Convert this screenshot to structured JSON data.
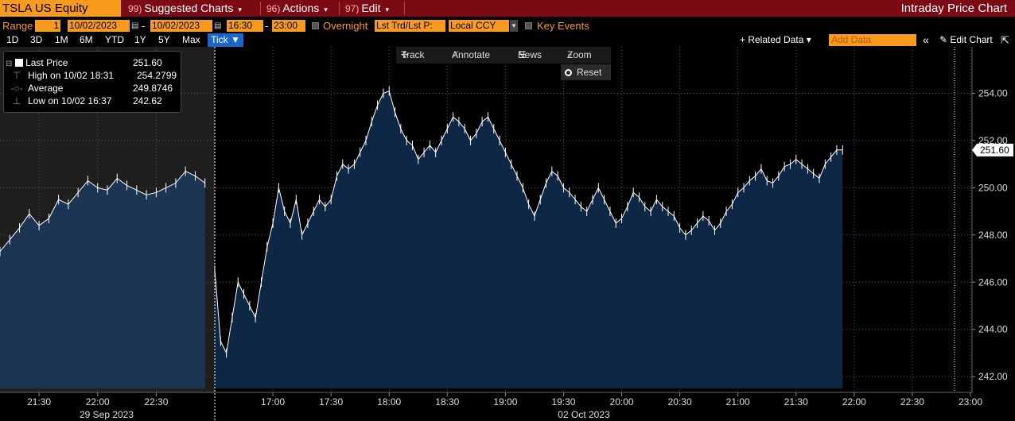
{
  "topbar": {
    "ticker": "TSLA US Equity",
    "suggested": {
      "num": "99)",
      "label": "Suggested Charts"
    },
    "actions": {
      "num": "96)",
      "label": "Actions"
    },
    "edit": {
      "num": "97)",
      "label": "Edit"
    },
    "title": "Intraday Price Chart",
    "dropdown_glyph": "▾"
  },
  "bar2": {
    "range_label": "Range",
    "range_value": "1",
    "start_date": "10/02/2023",
    "dash": "-",
    "end_date": "10/02/2023",
    "start_time": "16:30",
    "end_time": "23:00",
    "overnight_label": "Overnight",
    "field_select": "Lst Trd/Lst P:",
    "ccy_select": "Local CCY",
    "key_events_label": "Key Events"
  },
  "bar3": {
    "periods": [
      "1D",
      "3D",
      "1M",
      "6M",
      "YTD",
      "1Y",
      "5Y",
      "Max"
    ],
    "tick_label": "Tick ▼",
    "related_data": "+ Related Data ▾",
    "add_data_placeholder": "Add Data",
    "collapse_glyph": "«",
    "edit_chart": "Edit Chart",
    "expand_glyph": "⇱"
  },
  "legend": {
    "last_price_label": "Last Price",
    "last_price_value": "251.60",
    "high_label": "High on 10/02 18:31",
    "high_value": "254.2799",
    "average_label": "Average",
    "average_value": "249.8746",
    "low_label": "Low on 10/02 16:37",
    "low_value": "242.62"
  },
  "tools": {
    "track": "Track",
    "annotate": "Annotate",
    "news": "News",
    "zoom": "Zoom",
    "reset": "Reset"
  },
  "chart_data": {
    "type": "area",
    "ylim": [
      241.5,
      255.8
    ],
    "y_ticks": [
      "242.00",
      "244.00",
      "246.00",
      "248.00",
      "250.00",
      "252.00",
      "254.00"
    ],
    "last_price_tag": "251.60",
    "x_ticks": [
      "21:30",
      "22:00",
      "22:30",
      "17:00",
      "17:30",
      "18:00",
      "18:30",
      "19:00",
      "19:30",
      "20:00",
      "20:30",
      "21:00",
      "21:30",
      "22:00",
      "22:30",
      "23:00"
    ],
    "date_labels": [
      "29 Sep 2023",
      "02 Oct 2023"
    ],
    "sessions": [
      {
        "date": "29 Sep 2023",
        "x_start": "21:10",
        "x_end": "23:00",
        "points": [
          [
            0,
            247.3
          ],
          [
            5,
            247.8
          ],
          [
            10,
            248.3
          ],
          [
            15,
            248.9
          ],
          [
            20,
            248.4
          ],
          [
            25,
            248.7
          ],
          [
            30,
            249.5
          ],
          [
            35,
            249.3
          ],
          [
            40,
            249.8
          ],
          [
            45,
            250.3
          ],
          [
            50,
            250.0
          ],
          [
            55,
            249.9
          ],
          [
            60,
            250.4
          ],
          [
            65,
            250.1
          ],
          [
            70,
            249.9
          ],
          [
            75,
            249.7
          ],
          [
            80,
            249.8
          ],
          [
            85,
            250.0
          ],
          [
            90,
            250.2
          ],
          [
            95,
            250.7
          ],
          [
            100,
            250.5
          ],
          [
            105,
            250.2
          ]
        ]
      },
      {
        "date": "02 Oct 2023",
        "x_start": "16:30",
        "x_end": "23:00",
        "points": [
          [
            0,
            246.5
          ],
          [
            3,
            243.5
          ],
          [
            6,
            243.0
          ],
          [
            9,
            244.5
          ],
          [
            12,
            246.0
          ],
          [
            15,
            245.5
          ],
          [
            18,
            245.0
          ],
          [
            21,
            244.5
          ],
          [
            24,
            246.0
          ],
          [
            27,
            247.5
          ],
          [
            30,
            248.5
          ],
          [
            33,
            250.0
          ],
          [
            36,
            249.0
          ],
          [
            39,
            248.5
          ],
          [
            42,
            249.5
          ],
          [
            45,
            248.0
          ],
          [
            48,
            248.5
          ],
          [
            51,
            249.0
          ],
          [
            54,
            249.5
          ],
          [
            57,
            249.2
          ],
          [
            60,
            249.5
          ],
          [
            63,
            250.5
          ],
          [
            66,
            251.0
          ],
          [
            69,
            250.8
          ],
          [
            72,
            251.0
          ],
          [
            75,
            251.5
          ],
          [
            78,
            252.0
          ],
          [
            81,
            252.8
          ],
          [
            84,
            253.5
          ],
          [
            87,
            254.0
          ],
          [
            90,
            254.1
          ],
          [
            93,
            253.2
          ],
          [
            96,
            252.5
          ],
          [
            99,
            252.0
          ],
          [
            102,
            251.8
          ],
          [
            105,
            251.2
          ],
          [
            108,
            251.5
          ],
          [
            111,
            251.8
          ],
          [
            114,
            251.5
          ],
          [
            117,
            252.0
          ],
          [
            120,
            252.5
          ],
          [
            123,
            253.0
          ],
          [
            126,
            252.8
          ],
          [
            129,
            252.5
          ],
          [
            132,
            252.0
          ],
          [
            135,
            252.3
          ],
          [
            138,
            252.8
          ],
          [
            141,
            253.0
          ],
          [
            144,
            252.5
          ],
          [
            147,
            252.0
          ],
          [
            150,
            251.5
          ],
          [
            153,
            251.0
          ],
          [
            156,
            250.5
          ],
          [
            159,
            250.0
          ],
          [
            162,
            249.3
          ],
          [
            165,
            248.8
          ],
          [
            168,
            249.5
          ],
          [
            171,
            250.2
          ],
          [
            174,
            250.7
          ],
          [
            177,
            250.5
          ],
          [
            180,
            250.0
          ],
          [
            183,
            249.8
          ],
          [
            186,
            249.5
          ],
          [
            189,
            249.2
          ],
          [
            192,
            249.0
          ],
          [
            195,
            249.5
          ],
          [
            198,
            250.0
          ],
          [
            201,
            249.5
          ],
          [
            204,
            249.0
          ],
          [
            207,
            248.5
          ],
          [
            210,
            248.7
          ],
          [
            213,
            249.2
          ],
          [
            216,
            249.8
          ],
          [
            219,
            249.6
          ],
          [
            222,
            249.2
          ],
          [
            225,
            249.0
          ],
          [
            228,
            249.5
          ],
          [
            231,
            249.2
          ],
          [
            234,
            249.0
          ],
          [
            237,
            248.8
          ],
          [
            240,
            248.3
          ],
          [
            243,
            248.0
          ],
          [
            246,
            248.2
          ],
          [
            249,
            248.5
          ],
          [
            252,
            248.8
          ],
          [
            255,
            248.6
          ],
          [
            258,
            248.2
          ],
          [
            261,
            248.5
          ],
          [
            264,
            249.0
          ],
          [
            267,
            249.3
          ],
          [
            270,
            249.8
          ],
          [
            273,
            250.0
          ],
          [
            276,
            250.3
          ],
          [
            279,
            250.5
          ],
          [
            282,
            250.8
          ],
          [
            285,
            250.3
          ],
          [
            288,
            250.2
          ],
          [
            291,
            250.5
          ],
          [
            294,
            250.9
          ],
          [
            297,
            251.0
          ],
          [
            300,
            251.2
          ],
          [
            303,
            251.0
          ],
          [
            306,
            250.8
          ],
          [
            309,
            250.6
          ],
          [
            312,
            250.4
          ],
          [
            315,
            251.0
          ],
          [
            318,
            251.3
          ],
          [
            321,
            251.6
          ],
          [
            324,
            251.6
          ]
        ]
      }
    ]
  }
}
